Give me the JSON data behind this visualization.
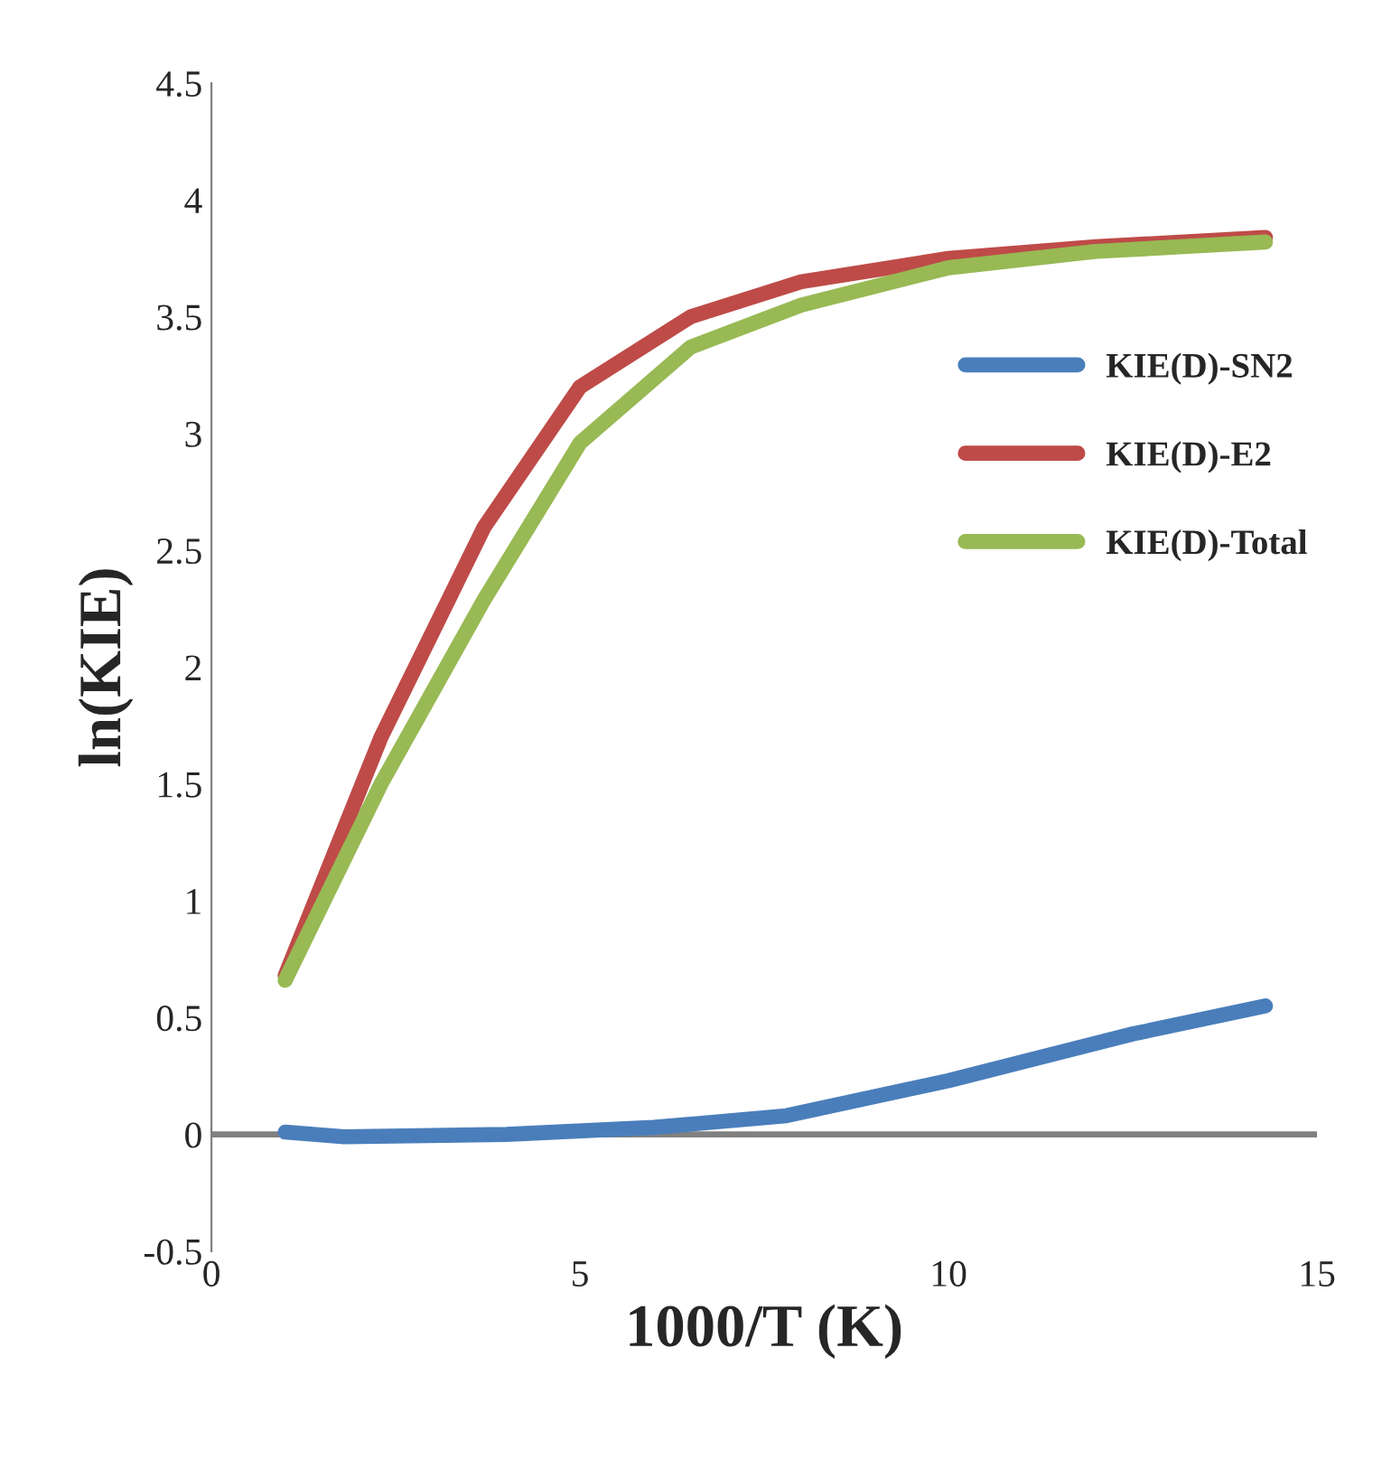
{
  "chart_data": {
    "type": "line",
    "xlabel": "1000/T (K)",
    "ylabel": "ln(KIE)",
    "xlim": [
      0,
      15
    ],
    "xticks": [
      0,
      5,
      10,
      15
    ],
    "ylim": [
      -0.5,
      4.5
    ],
    "yticks": [
      -0.5,
      0,
      0.5,
      1,
      1.5,
      2,
      2.5,
      3,
      3.5,
      4,
      4.5
    ],
    "legend": "right",
    "grid": false,
    "marker": "none",
    "line_style": "solid",
    "ref_lines": [
      {
        "axis": "y",
        "value": 0,
        "color": "#808080"
      }
    ],
    "series": [
      {
        "name": "KIE(D)-SN2",
        "color": "#4a7ebb",
        "x": [
          1,
          1.8,
          4,
          6,
          7.8,
          10,
          12.5,
          14.3
        ],
        "values": [
          0.01,
          -0.01,
          0.0,
          0.03,
          0.08,
          0.23,
          0.43,
          0.55
        ]
      },
      {
        "name": "KIE(D)-E2",
        "color": "#be4b48",
        "x": [
          1,
          2.3,
          3.7,
          5,
          6.5,
          8,
          10,
          12,
          14.3
        ],
        "values": [
          0.68,
          1.7,
          2.6,
          3.2,
          3.5,
          3.65,
          3.75,
          3.8,
          3.84
        ]
      },
      {
        "name": "KIE(D)-Total",
        "color": "#98b954",
        "x": [
          1,
          2.3,
          3.7,
          5,
          6.5,
          8,
          10,
          12,
          14.3
        ],
        "values": [
          0.66,
          1.5,
          2.29,
          2.96,
          3.37,
          3.55,
          3.71,
          3.78,
          3.82
        ]
      }
    ]
  }
}
